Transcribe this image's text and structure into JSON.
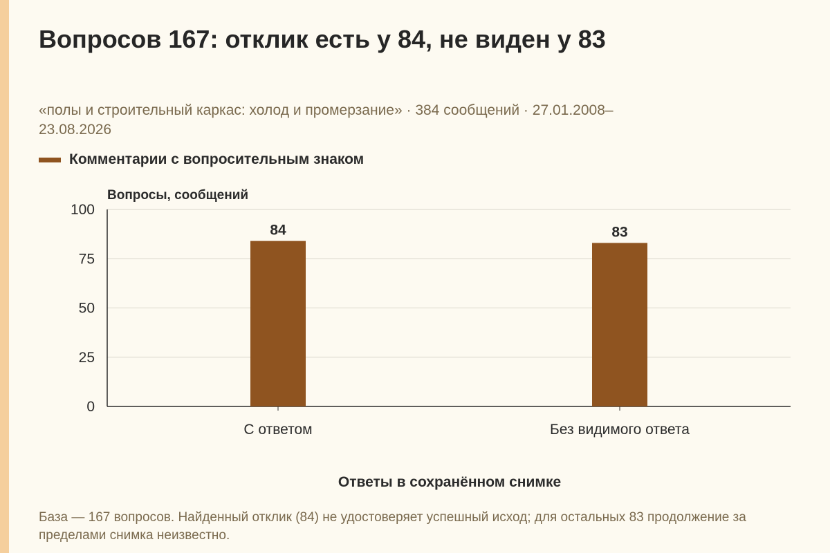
{
  "title": "Вопросов 167: отклик есть у 84, не виден у 83",
  "subtitle": "«полы и строительный каркас: холод и промерзание» · 384 сообщений · 27.01.2008–23.08.2026",
  "note": "База — 167 вопросов. Найденный отклик (84) не удостоверяет успешный исход; для остальных 83 продолжение за пределами снимка неизвестно.",
  "colors": {
    "bar": "#8f5420",
    "accent_strip": "#f5cf9d",
    "background": "#fdfaf1",
    "grid": "#d9d6cc",
    "axis": "#2b2b2b"
  },
  "chart_data": {
    "type": "bar",
    "xlabel": "Ответы в сохранённом снимке",
    "ylabel": "Вопросы, сообщений",
    "categories": [
      "С ответом",
      "Без видимого ответа"
    ],
    "series": [
      {
        "name": "Комментарии с вопросительным знаком",
        "values": [
          84,
          83
        ]
      }
    ],
    "data_labels": [
      "84",
      "83"
    ],
    "ylim": [
      0,
      100
    ],
    "yticks": [
      "0",
      "25",
      "50",
      "75",
      "100"
    ],
    "grid": true,
    "legend": "top-left"
  }
}
